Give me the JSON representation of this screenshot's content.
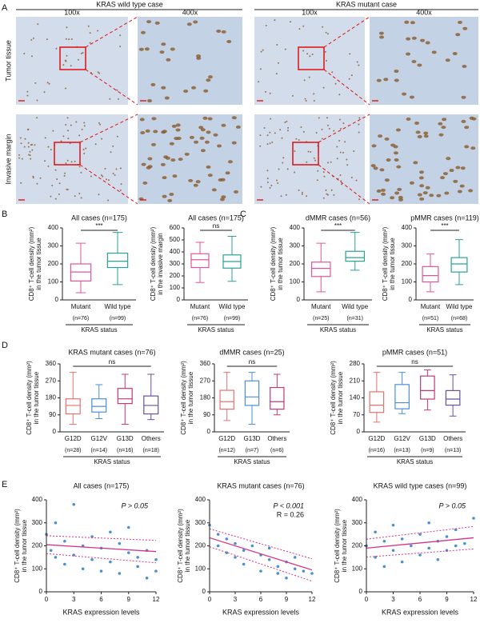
{
  "panel_labels": [
    "A",
    "B",
    "C",
    "D",
    "E"
  ],
  "panel_a": {
    "groups": [
      "KRAS wild type case",
      "KRAS mutant case"
    ],
    "magnifications": [
      "100x",
      "400x",
      "100x",
      "400x"
    ],
    "rows": [
      "Tumor tissue",
      "Invasive margin"
    ]
  },
  "chart_data": [
    {
      "type": "box",
      "title": "All cases (n=175)",
      "ylabel": [
        "CD8⁺ T-cell density (mm²)",
        "in the tumor tissue"
      ],
      "xlabel": "KRAS status",
      "categories": [
        "Mutant",
        "Wild type"
      ],
      "n_labels": [
        "(n=76)",
        "(n=99)"
      ],
      "ylim": [
        0,
        400
      ],
      "yticks": [
        0,
        100,
        200,
        300,
        400
      ],
      "significance": "***",
      "boxes": [
        {
          "min": 40,
          "q1": 105,
          "median": 155,
          "q3": 200,
          "max": 315,
          "color": "#e0569a"
        },
        {
          "min": 85,
          "q1": 180,
          "median": 215,
          "q3": 260,
          "max": 375,
          "color": "#2aa198"
        }
      ]
    },
    {
      "type": "box",
      "title": "All cases (n=175)",
      "ylabel": [
        "CD8⁺ T-cell density (mm²)",
        "in the invasive margin"
      ],
      "xlabel": "KRAS status",
      "categories": [
        "Mutant",
        "Wild type"
      ],
      "n_labels": [
        "(n=76)",
        "(n=99)"
      ],
      "ylim": [
        0,
        600
      ],
      "yticks": [
        0,
        100,
        200,
        300,
        400,
        500,
        600
      ],
      "significance": "ns",
      "boxes": [
        {
          "min": 145,
          "q1": 270,
          "median": 335,
          "q3": 385,
          "max": 480,
          "color": "#e0569a"
        },
        {
          "min": 155,
          "q1": 265,
          "median": 320,
          "q3": 375,
          "max": 530,
          "color": "#2aa198"
        }
      ]
    },
    {
      "type": "box",
      "title": "dMMR cases (n=56)",
      "ylabel": [
        "CD8⁺ T-cell density (mm²)",
        "in the tumor tissue"
      ],
      "xlabel": "KRAS status",
      "categories": [
        "Mutant",
        "Wild type"
      ],
      "n_labels": [
        "(n=25)",
        "(n=31)"
      ],
      "ylim": [
        0,
        400
      ],
      "yticks": [
        0,
        100,
        200,
        300,
        400
      ],
      "significance": "***",
      "boxes": [
        {
          "min": 45,
          "q1": 130,
          "median": 175,
          "q3": 210,
          "max": 315,
          "color": "#e0569a"
        },
        {
          "min": 165,
          "q1": 215,
          "median": 235,
          "q3": 270,
          "max": 375,
          "color": "#2aa198"
        }
      ]
    },
    {
      "type": "box",
      "title": "pMMR cases (n=119)",
      "ylabel": [
        "CD8⁺ T-cell density (mm²)",
        "in the tumor tissue"
      ],
      "xlabel": "KRAS status",
      "categories": [
        "Mutant",
        "Wild type"
      ],
      "n_labels": [
        "(n=51)",
        "(n=68)"
      ],
      "ylim": [
        0,
        400
      ],
      "yticks": [
        0,
        100,
        200,
        300,
        400
      ],
      "significance": "***",
      "boxes": [
        {
          "min": 45,
          "q1": 100,
          "median": 135,
          "q3": 185,
          "max": 255,
          "color": "#e0569a"
        },
        {
          "min": 85,
          "q1": 155,
          "median": 200,
          "q3": 235,
          "max": 335,
          "color": "#2aa198"
        }
      ]
    },
    {
      "type": "box",
      "title": "KRAS mutant cases (n=76)",
      "ylabel": [
        "CD8⁺ T-cell density (mm²)",
        "in the tumor tissue"
      ],
      "xlabel": "KRAS status",
      "categories": [
        "G12D",
        "G12V",
        "G13D",
        "Others"
      ],
      "n_labels": [
        "(n=28)",
        "(n=14)",
        "(n=16)",
        "(n=18)"
      ],
      "ylim": [
        0,
        360
      ],
      "yticks": [
        0,
        90,
        180,
        270,
        360
      ],
      "significance": "ns",
      "boxes": [
        {
          "min": 40,
          "q1": 95,
          "median": 140,
          "q3": 175,
          "max": 315,
          "color": "#e8716f"
        },
        {
          "min": 70,
          "q1": 105,
          "median": 135,
          "q3": 175,
          "max": 250,
          "color": "#4a90d9"
        },
        {
          "min": 40,
          "q1": 150,
          "median": 175,
          "q3": 230,
          "max": 305,
          "color": "#c0397a"
        },
        {
          "min": 65,
          "q1": 95,
          "median": 140,
          "q3": 190,
          "max": 305,
          "color": "#6c4fa0"
        }
      ]
    },
    {
      "type": "box",
      "title": "dMMR cases (n=25)",
      "ylabel": [
        "CD8⁺ T-cell density (mm²)",
        "in the tumor tissue"
      ],
      "xlabel": "KRAS status",
      "categories": [
        "G12D",
        "G13D",
        "Others"
      ],
      "n_labels": [
        "(n=12)",
        "(n=7)",
        "(n=6)"
      ],
      "ylim": [
        0,
        360
      ],
      "yticks": [
        0,
        90,
        180,
        270,
        360
      ],
      "significance": "ns",
      "boxes": [
        {
          "min": 60,
          "q1": 120,
          "median": 160,
          "q3": 220,
          "max": 315,
          "color": "#e8716f"
        },
        {
          "min": 40,
          "q1": 140,
          "median": 185,
          "q3": 270,
          "max": 315,
          "color": "#4a90d9"
        },
        {
          "min": 90,
          "q1": 120,
          "median": 160,
          "q3": 235,
          "max": 305,
          "color": "#c0397a"
        }
      ]
    },
    {
      "type": "box",
      "title": "pMMR cases (n=51)",
      "ylabel": [
        "CD8⁺ T-cell density (mm²)",
        "in the tumor tissue"
      ],
      "xlabel": "KRAS status",
      "categories": [
        "G12D",
        "G12V",
        "G13D",
        "Others"
      ],
      "n_labels": [
        "(n=16)",
        "(n=13)",
        "(n=9)",
        "(n=13)"
      ],
      "ylim": [
        0,
        280
      ],
      "yticks": [
        0,
        70,
        140,
        210,
        280
      ],
      "significance": "ns",
      "boxes": [
        {
          "min": 40,
          "q1": 80,
          "median": 110,
          "q3": 165,
          "max": 245,
          "color": "#e8716f"
        },
        {
          "min": 75,
          "q1": 95,
          "median": 120,
          "q3": 195,
          "max": 245,
          "color": "#4a90d9"
        },
        {
          "min": 90,
          "q1": 135,
          "median": 170,
          "q3": 230,
          "max": 255,
          "color": "#c0397a"
        },
        {
          "min": 65,
          "q1": 110,
          "median": 135,
          "q3": 170,
          "max": 235,
          "color": "#6c4fa0"
        }
      ]
    },
    {
      "type": "scatter",
      "title": "All cases (n=175)",
      "ylabel": [
        "CD8⁺ T-cell density (mm²)",
        "in the tumor tissue"
      ],
      "xlabel": "KRAS expression levels",
      "xlim": [
        0,
        12
      ],
      "ylim": [
        0,
        400
      ],
      "xticks": [
        0,
        3,
        6,
        9,
        12
      ],
      "yticks": [
        0,
        100,
        200,
        300,
        400
      ],
      "color": "#4a8fd6",
      "fit_color": "#d6338a",
      "x": [
        0,
        0.5,
        1,
        1,
        2,
        2,
        3,
        3,
        4,
        4,
        5,
        5,
        6,
        6,
        7,
        7,
        8,
        8,
        9,
        9,
        10,
        10,
        11,
        11,
        12,
        12
      ],
      "y": [
        250,
        180,
        300,
        150,
        220,
        120,
        380,
        160,
        200,
        100,
        240,
        140,
        190,
        90,
        260,
        130,
        210,
        80,
        170,
        280,
        150,
        110,
        180,
        60,
        140,
        90
      ],
      "fit": {
        "x": [
          0,
          12
        ],
        "y": [
          205,
          175
        ]
      },
      "annotations": [
        "P > 0.05"
      ]
    },
    {
      "type": "scatter",
      "title": "KRAS mutant cases (n=76)",
      "ylabel": [
        "CD8⁺ T-cell density (mm²)",
        "in the tumor tissue"
      ],
      "xlabel": "KRAS expression levels",
      "xlim": [
        0,
        12
      ],
      "ylim": [
        0,
        400
      ],
      "xticks": [
        0,
        3,
        6,
        9,
        12
      ],
      "yticks": [
        0,
        100,
        200,
        300,
        400
      ],
      "color": "#4a8fd6",
      "fit_color": "#d6338a",
      "x": [
        0,
        1,
        1,
        2,
        2,
        3,
        3,
        4,
        4,
        5,
        6,
        6,
        7,
        7,
        8,
        8,
        9,
        9,
        10,
        10,
        11,
        12
      ],
      "y": [
        290,
        250,
        200,
        230,
        170,
        210,
        150,
        180,
        120,
        200,
        160,
        90,
        140,
        190,
        110,
        80,
        130,
        60,
        100,
        150,
        90,
        80
      ],
      "fit": {
        "x": [
          0,
          12
        ],
        "y": [
          235,
          95
        ]
      },
      "annotations": [
        "P < 0.001",
        "R = 0.26"
      ]
    },
    {
      "type": "scatter",
      "title": "KRAS wild type cases (n=99)",
      "ylabel": [
        "CD8⁺ T-cell density (mm²)",
        "in the tumor tissue"
      ],
      "xlabel": "KRAS expression levels",
      "xlim": [
        0,
        12
      ],
      "ylim": [
        0,
        400
      ],
      "xticks": [
        0,
        3,
        6,
        9,
        12
      ],
      "yticks": [
        0,
        100,
        200,
        300,
        400
      ],
      "color": "#4a8fd6",
      "fit_color": "#d6338a",
      "x": [
        0,
        1,
        1,
        2,
        2,
        3,
        3,
        4,
        4,
        5,
        6,
        6,
        7,
        7,
        8,
        8,
        9,
        9,
        10,
        10,
        11,
        12
      ],
      "y": [
        200,
        260,
        150,
        220,
        110,
        180,
        290,
        230,
        130,
        200,
        250,
        160,
        190,
        300,
        220,
        140,
        240,
        180,
        270,
        200,
        210,
        320
      ],
      "fit": {
        "x": [
          0,
          12
        ],
        "y": [
          190,
          235
        ]
      },
      "annotations": [
        "P > 0.05"
      ]
    }
  ]
}
